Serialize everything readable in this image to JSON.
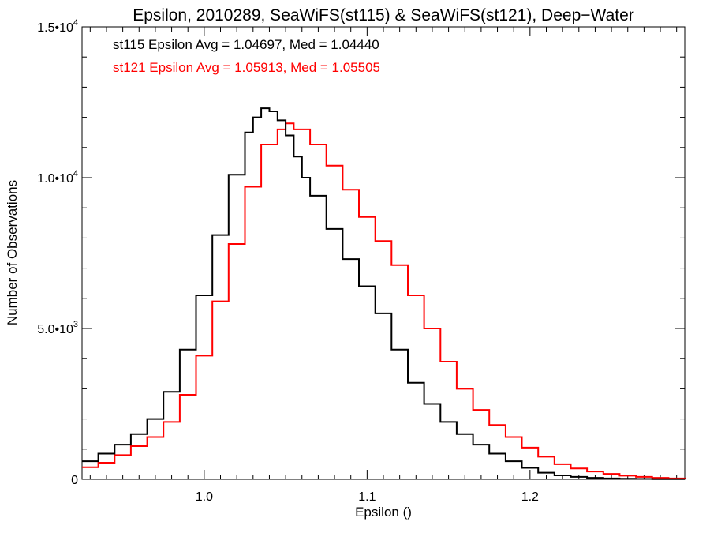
{
  "chart_data": {
    "type": "line",
    "title": "Epsilon, 2010289, SeaWiFS(st115) & SeaWiFS(st121), Deep−Water",
    "xlabel": "Epsilon ()",
    "ylabel": "Number of Observations",
    "xlim": [
      0.925,
      1.295
    ],
    "ylim": [
      0,
      15000
    ],
    "x_ticks": [
      {
        "value": 1.0,
        "label": "1.0"
      },
      {
        "value": 1.1,
        "label": "1.1"
      },
      {
        "value": 1.2,
        "label": "1.2"
      }
    ],
    "y_ticks": [
      {
        "value": 0,
        "mantissa": "0",
        "exponent": ""
      },
      {
        "value": 5000,
        "mantissa": "5.0•10",
        "exponent": "3"
      },
      {
        "value": 10000,
        "mantissa": "1.0•10",
        "exponent": "4"
      },
      {
        "value": 15000,
        "mantissa": "1.5•10",
        "exponent": "4"
      }
    ],
    "grid": false,
    "legend": "top-left",
    "annotations": [
      {
        "text": "st115 Epsilon Avg = 1.04697, Med = 1.04440",
        "color": "#000000"
      },
      {
        "text": "st121 Epsilon Avg = 1.05913, Med = 1.05505",
        "color": "#ff0000"
      }
    ],
    "series": [
      {
        "color": "#000000",
        "x": [
          0.925,
          0.935,
          0.945,
          0.955,
          0.965,
          0.975,
          0.985,
          0.995,
          1.005,
          1.015,
          1.025,
          1.03,
          1.035,
          1.04,
          1.045,
          1.05,
          1.055,
          1.06,
          1.065,
          1.075,
          1.085,
          1.095,
          1.105,
          1.115,
          1.125,
          1.135,
          1.145,
          1.155,
          1.165,
          1.175,
          1.185,
          1.195,
          1.205,
          1.215,
          1.225,
          1.235,
          1.245,
          1.255,
          1.265,
          1.275,
          1.285,
          1.295
        ],
        "values": [
          600,
          850,
          1150,
          1500,
          2000,
          2900,
          4300,
          6100,
          8100,
          10100,
          11500,
          12000,
          12300,
          12200,
          11900,
          11400,
          10700,
          10000,
          9400,
          8300,
          7300,
          6400,
          5500,
          4300,
          3200,
          2500,
          1900,
          1500,
          1150,
          850,
          600,
          380,
          220,
          130,
          80,
          50,
          30,
          20,
          12,
          8,
          5,
          3
        ]
      },
      {
        "color": "#ff0000",
        "x": [
          0.925,
          0.935,
          0.945,
          0.955,
          0.965,
          0.975,
          0.985,
          0.995,
          1.005,
          1.015,
          1.025,
          1.035,
          1.045,
          1.05,
          1.055,
          1.065,
          1.075,
          1.085,
          1.095,
          1.105,
          1.115,
          1.125,
          1.135,
          1.145,
          1.155,
          1.165,
          1.175,
          1.185,
          1.195,
          1.205,
          1.215,
          1.225,
          1.235,
          1.245,
          1.255,
          1.265,
          1.275,
          1.285,
          1.295
        ],
        "values": [
          400,
          550,
          800,
          1100,
          1400,
          1900,
          2800,
          4100,
          5900,
          7800,
          9700,
          11100,
          11600,
          11800,
          11600,
          11100,
          10400,
          9600,
          8700,
          7900,
          7100,
          6100,
          5000,
          3900,
          3000,
          2300,
          1800,
          1400,
          1050,
          750,
          500,
          360,
          260,
          180,
          120,
          80,
          50,
          30,
          20
        ]
      }
    ]
  }
}
